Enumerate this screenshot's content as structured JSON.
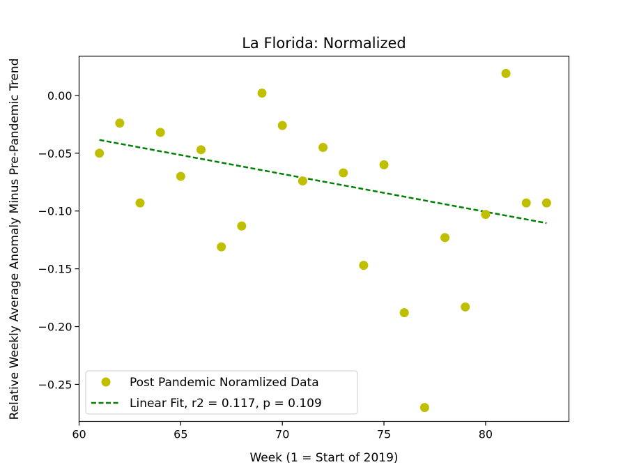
{
  "chart_data": {
    "type": "scatter",
    "title": "La Florida: Normalized",
    "xlabel": "Week (1 = Start of 2019)",
    "ylabel": "Relative Weekly Average Anomaly Minus Pre-Pandemic Trend",
    "xlim": [
      60.0,
      84.1
    ],
    "ylim": [
      -0.282,
      0.034
    ],
    "xticks": [
      60,
      65,
      70,
      75,
      80
    ],
    "yticks": [
      0.0,
      -0.05,
      -0.1,
      -0.15,
      -0.2,
      -0.25
    ],
    "xtick_labels": [
      "60",
      "65",
      "70",
      "75",
      "80"
    ],
    "ytick_labels": [
      "0.00",
      "−0.05",
      "−0.10",
      "−0.15",
      "−0.20",
      "−0.25"
    ],
    "grid": false,
    "legend_position": "lower-left",
    "series": [
      {
        "name": "Post Pandemic Noramlized Data",
        "kind": "scatter",
        "color": "#bfbf00",
        "x": [
          61,
          62,
          63,
          64,
          65,
          66,
          67,
          68,
          69,
          70,
          71,
          72,
          73,
          74,
          75,
          76,
          77,
          78,
          79,
          80,
          81,
          82,
          83
        ],
        "y": [
          -0.05,
          -0.024,
          -0.093,
          -0.032,
          -0.07,
          -0.047,
          -0.131,
          -0.113,
          0.002,
          -0.026,
          -0.074,
          -0.045,
          -0.067,
          -0.147,
          -0.06,
          -0.188,
          -0.27,
          -0.123,
          -0.183,
          -0.103,
          0.019,
          -0.093,
          -0.093
        ]
      },
      {
        "name": "Linear Fit, r2 = 0.117, p = 0.109",
        "kind": "line",
        "style": "dashed",
        "color": "#008000",
        "x": [
          61,
          83
        ],
        "y": [
          -0.0385,
          -0.1105
        ]
      }
    ]
  }
}
